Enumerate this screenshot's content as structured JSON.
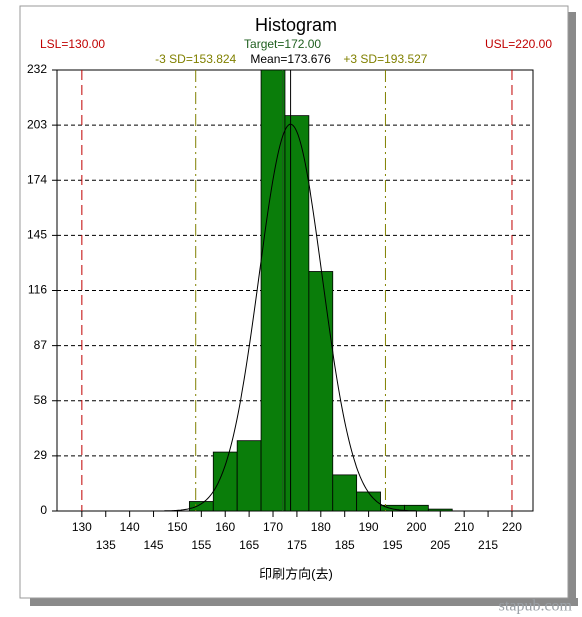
{
  "chart_data": {
    "type": "histogram",
    "title": "Histogram",
    "x_label": "印刷方向(去)",
    "bins": [
      152.5,
      157.5,
      162.5,
      167.5,
      172.5,
      177.5,
      182.5,
      187.5,
      192.5,
      197.5,
      202.5,
      207.5
    ],
    "counts": [
      5,
      31,
      37,
      232,
      208,
      126,
      19,
      10,
      3,
      3,
      1
    ],
    "color": "#0a7d0a",
    "xlim": [
      124.8,
      224.4
    ],
    "ylim": [
      0,
      232
    ],
    "xticks": [
      130,
      135,
      140,
      145,
      150,
      155,
      160,
      165,
      170,
      175,
      180,
      185,
      190,
      195,
      200,
      205,
      210,
      215,
      220
    ],
    "yticks": [
      0,
      29,
      58,
      87,
      116,
      145,
      174,
      203,
      232
    ],
    "grid": true,
    "reference_lines": [
      {
        "value": 130,
        "label": "LSL=130.00",
        "color": "#c00000",
        "style": "dashed"
      },
      {
        "value": 172,
        "label": "Target=172.00",
        "color": "#1f5f1f",
        "style": "solid"
      },
      {
        "value": 153.824,
        "label": "-3 SD=153.824",
        "color": "#808000",
        "style": "dashdot"
      },
      {
        "value": 173.676,
        "label": "Mean=173.676",
        "color": "#000000",
        "style": "solid"
      },
      {
        "value": 193.527,
        "label": "+3 SD=193.527",
        "color": "#808000",
        "style": "dashdot"
      },
      {
        "value": 220,
        "label": "USL=220.00",
        "color": "#c00000",
        "style": "dashed"
      }
    ],
    "watermark": "stapub.com"
  }
}
